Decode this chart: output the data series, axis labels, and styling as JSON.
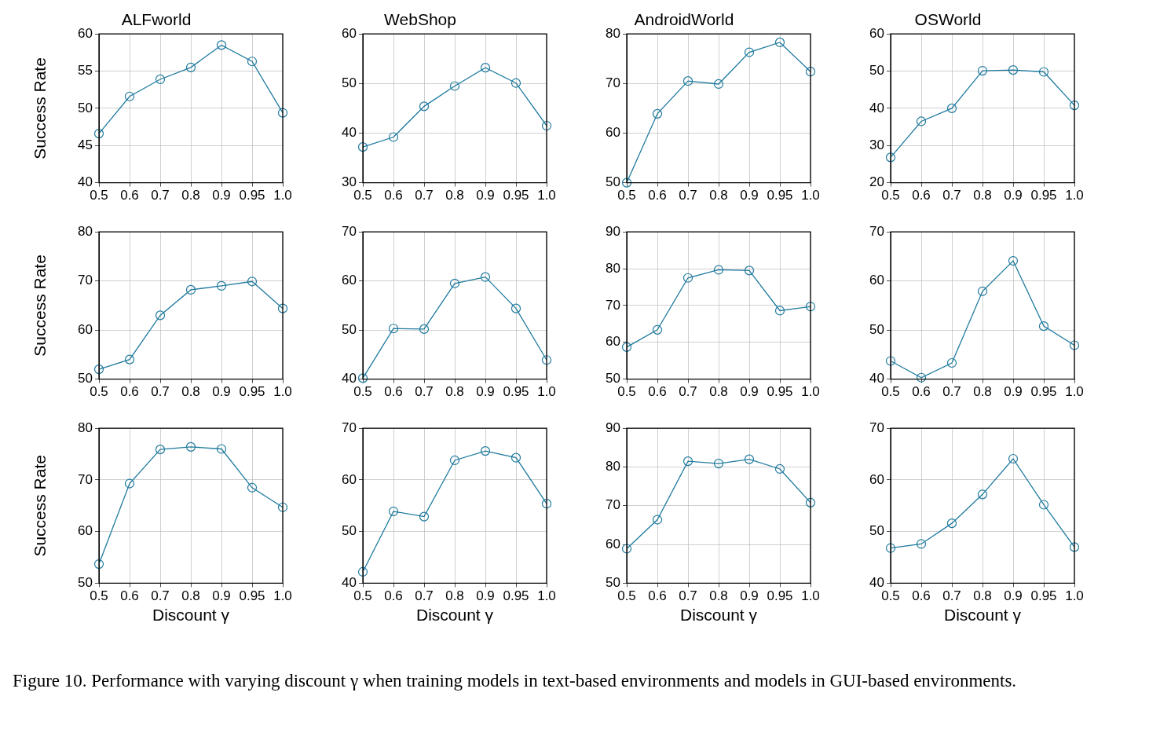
{
  "chart_data": [
    {
      "type": "line",
      "title": "ALFworld",
      "ylabel": "Success Rate",
      "categories": [
        "0.5",
        "0.6",
        "0.7",
        "0.8",
        "0.9",
        "0.95",
        "1.0"
      ],
      "series": [
        {
          "color": "#1f7a9e",
          "values": [
            46.6,
            51.6,
            53.9,
            55.5,
            58.5,
            56.3,
            49.4
          ]
        }
      ],
      "ylim": [
        40,
        60
      ],
      "yticks": [
        40,
        45,
        50,
        55,
        60
      ],
      "grid": true,
      "marker": "circle",
      "annotations": [
        "Figure 10. Performance with varying discount γ when training models in text-based environments and models in GUI-based environments."
      ]
    },
    {
      "type": "line",
      "title": "WebShop",
      "categories": [
        "0.5",
        "0.6",
        "0.7",
        "0.8",
        "0.9",
        "0.95",
        "1.0"
      ],
      "series": [
        {
          "color": "#1f7a9e",
          "values": [
            37.2,
            39.2,
            45.4,
            49.5,
            53.2,
            50.1,
            41.5
          ]
        }
      ],
      "ylim": [
        30,
        60
      ],
      "yticks": [
        30,
        40,
        50,
        60
      ],
      "grid": true,
      "marker": "circle"
    },
    {
      "type": "line",
      "title": "AndroidWorld",
      "categories": [
        "0.5",
        "0.6",
        "0.7",
        "0.8",
        "0.9",
        "0.95",
        "1.0"
      ],
      "series": [
        {
          "color": "#1f7a9e",
          "values": [
            50.0,
            63.9,
            70.5,
            69.9,
            76.3,
            78.3,
            72.4
          ]
        }
      ],
      "ylim": [
        50,
        80
      ],
      "yticks": [
        50,
        60,
        70,
        80
      ],
      "grid": true,
      "marker": "circle"
    },
    {
      "type": "line",
      "title": "OSWorld",
      "categories": [
        "0.5",
        "0.6",
        "0.7",
        "0.8",
        "0.9",
        "0.95",
        "1.0"
      ],
      "series": [
        {
          "color": "#1f7a9e",
          "values": [
            26.8,
            36.5,
            40.0,
            50.1,
            50.3,
            49.8,
            40.8
          ]
        }
      ],
      "ylim": [
        20,
        60
      ],
      "yticks": [
        20,
        30,
        40,
        50,
        60
      ],
      "grid": true,
      "marker": "circle"
    },
    {
      "type": "line",
      "ylabel": "Success Rate",
      "categories": [
        "0.5",
        "0.6",
        "0.7",
        "0.8",
        "0.9",
        "0.95",
        "1.0"
      ],
      "series": [
        {
          "color": "#1f7a9e",
          "values": [
            52.0,
            54.0,
            63.0,
            68.2,
            69.0,
            69.9,
            64.4
          ]
        }
      ],
      "ylim": [
        50,
        80
      ],
      "yticks": [
        50,
        60,
        70,
        80
      ],
      "grid": true,
      "marker": "circle"
    },
    {
      "type": "line",
      "categories": [
        "0.5",
        "0.6",
        "0.7",
        "0.8",
        "0.9",
        "0.95",
        "1.0"
      ],
      "series": [
        {
          "color": "#1f7a9e",
          "values": [
            40.2,
            50.3,
            50.2,
            59.5,
            60.8,
            54.4,
            43.9
          ]
        }
      ],
      "ylim": [
        40,
        70
      ],
      "yticks": [
        40,
        50,
        60,
        70
      ],
      "grid": true,
      "marker": "circle"
    },
    {
      "type": "line",
      "categories": [
        "0.5",
        "0.6",
        "0.7",
        "0.8",
        "0.9",
        "0.95",
        "1.0"
      ],
      "series": [
        {
          "color": "#1f7a9e",
          "values": [
            58.7,
            63.4,
            77.5,
            79.7,
            79.5,
            68.6,
            69.7
          ]
        }
      ],
      "ylim": [
        50,
        90
      ],
      "yticks": [
        50,
        60,
        70,
        80,
        90
      ],
      "grid": true,
      "marker": "circle"
    },
    {
      "type": "line",
      "categories": [
        "0.5",
        "0.6",
        "0.7",
        "0.8",
        "0.9",
        "0.95",
        "1.0"
      ],
      "series": [
        {
          "color": "#1f7a9e",
          "values": [
            43.7,
            40.3,
            43.3,
            57.9,
            64.1,
            50.8,
            46.9
          ]
        }
      ],
      "ylim": [
        40,
        70
      ],
      "yticks": [
        40,
        50,
        60,
        70
      ],
      "grid": true,
      "marker": "circle"
    },
    {
      "type": "line",
      "ylabel": "Success Rate",
      "xlabel": "Discount γ",
      "categories": [
        "0.5",
        "0.6",
        "0.7",
        "0.8",
        "0.9",
        "0.95",
        "1.0"
      ],
      "series": [
        {
          "color": "#1f7a9e",
          "values": [
            53.7,
            69.3,
            75.9,
            76.4,
            76.0,
            68.5,
            64.7
          ]
        }
      ],
      "ylim": [
        50,
        80
      ],
      "yticks": [
        50,
        60,
        70,
        80
      ],
      "grid": true,
      "marker": "circle"
    },
    {
      "type": "line",
      "xlabel": "Discount γ",
      "categories": [
        "0.5",
        "0.6",
        "0.7",
        "0.8",
        "0.9",
        "0.95",
        "1.0"
      ],
      "series": [
        {
          "color": "#1f7a9e",
          "values": [
            42.2,
            53.9,
            52.9,
            63.8,
            65.6,
            64.3,
            55.4
          ]
        }
      ],
      "ylim": [
        40,
        70
      ],
      "yticks": [
        40,
        50,
        60,
        70
      ],
      "grid": true,
      "marker": "circle"
    },
    {
      "type": "line",
      "xlabel": "Discount γ",
      "categories": [
        "0.5",
        "0.6",
        "0.7",
        "0.8",
        "0.9",
        "0.95",
        "1.0"
      ],
      "series": [
        {
          "color": "#1f7a9e",
          "values": [
            58.9,
            66.4,
            81.5,
            80.9,
            82.0,
            79.5,
            70.8
          ]
        }
      ],
      "ylim": [
        50,
        90
      ],
      "yticks": [
        50,
        60,
        70,
        80,
        90
      ],
      "grid": true,
      "marker": "circle"
    },
    {
      "type": "line",
      "xlabel": "Discount γ",
      "categories": [
        "0.5",
        "0.6",
        "0.7",
        "0.8",
        "0.9",
        "0.95",
        "1.0"
      ],
      "series": [
        {
          "color": "#1f7a9e",
          "values": [
            46.8,
            47.6,
            51.6,
            57.2,
            64.1,
            55.2,
            47.0
          ]
        }
      ],
      "ylim": [
        40,
        70
      ],
      "yticks": [
        40,
        50,
        60,
        70
      ],
      "grid": true,
      "marker": "circle"
    }
  ]
}
